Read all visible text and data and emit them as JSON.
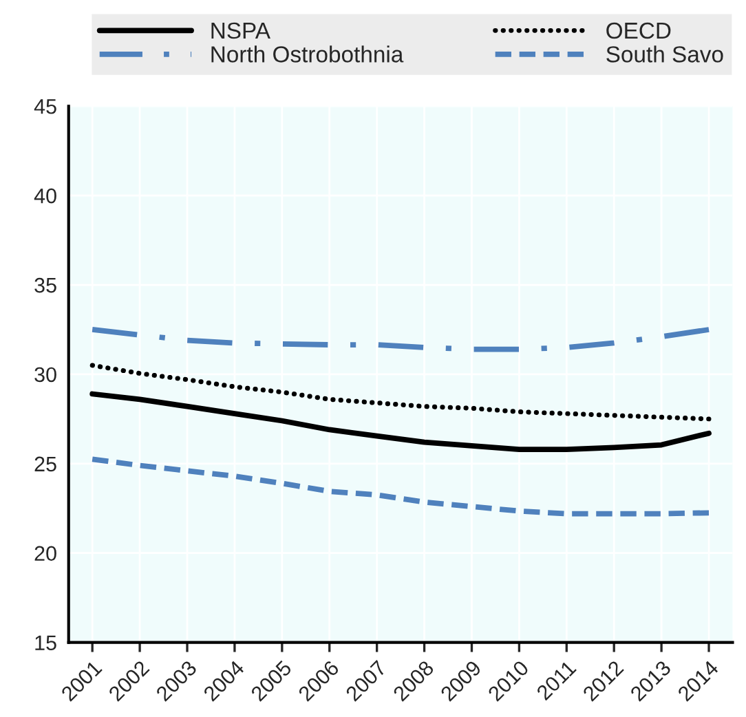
{
  "chart_data": {
    "type": "line",
    "categories": [
      "2001",
      "2002",
      "2003",
      "2004",
      "2005",
      "2006",
      "2007",
      "2008",
      "2009",
      "2010",
      "2011",
      "2012",
      "2013",
      "2014"
    ],
    "series": [
      {
        "name": "NSPA",
        "color": "#000000",
        "line_style": "solid",
        "values": [
          28.9,
          28.6,
          28.2,
          27.8,
          27.4,
          26.9,
          26.55,
          26.2,
          26.0,
          25.8,
          25.8,
          25.9,
          26.05,
          26.7
        ]
      },
      {
        "name": "OECD",
        "color": "#000000",
        "line_style": "dotted",
        "values": [
          30.5,
          30.05,
          29.7,
          29.3,
          29.0,
          28.6,
          28.4,
          28.2,
          28.1,
          27.9,
          27.8,
          27.7,
          27.6,
          27.5
        ]
      },
      {
        "name": "North Ostrobothnia",
        "color": "#4f81bd",
        "line_style": "dashdot",
        "values": [
          32.5,
          32.2,
          31.9,
          31.75,
          31.7,
          31.65,
          31.65,
          31.5,
          31.4,
          31.4,
          31.5,
          31.75,
          32.1,
          32.5
        ]
      },
      {
        "name": "South Savo",
        "color": "#4f81bd",
        "line_style": "dashed",
        "values": [
          25.25,
          24.9,
          24.6,
          24.3,
          23.9,
          23.45,
          23.25,
          22.85,
          22.6,
          22.35,
          22.2,
          22.2,
          22.2,
          22.25
        ]
      }
    ],
    "ylim": [
      15,
      45
    ],
    "yticks": [
      15,
      20,
      25,
      30,
      35,
      40,
      45
    ],
    "grid": true,
    "legend": "top",
    "marker": "none"
  }
}
